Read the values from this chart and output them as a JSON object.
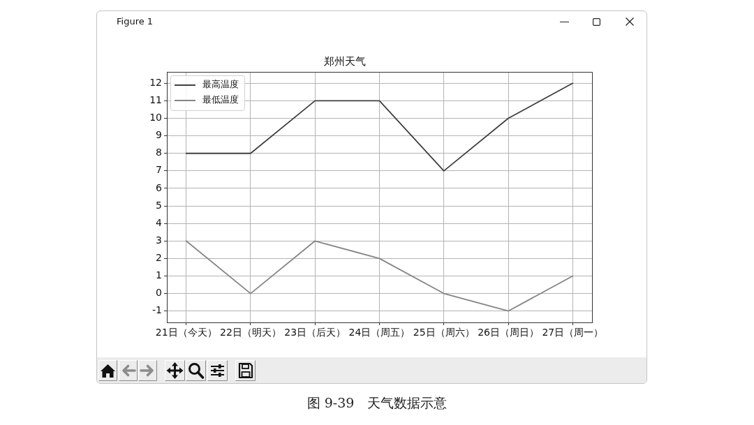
{
  "chart_data": {
    "type": "line",
    "title": "郑州天气",
    "categories": [
      "21日（今天）",
      "22日（明天）",
      "23日（后天）",
      "24日（周五）",
      "25日（周六）",
      "26日（周日）",
      "27日（周一）"
    ],
    "series": [
      {
        "name": "最高温度",
        "color": "#404040",
        "values": [
          8,
          8,
          11,
          11,
          7,
          10,
          12
        ]
      },
      {
        "name": "最低温度",
        "color": "#858585",
        "values": [
          3,
          0,
          3,
          2,
          0,
          -1,
          1
        ]
      }
    ],
    "ylim": [
      -1.65,
      12.65
    ],
    "yticks": [
      -1,
      0,
      1,
      2,
      3,
      4,
      5,
      6,
      7,
      8,
      9,
      10,
      11,
      12
    ],
    "grid": true,
    "legend": "top left",
    "line_style": "solid",
    "annotations": [
      "Figure 1",
      "图 9-39　天气数据示意"
    ]
  }
}
